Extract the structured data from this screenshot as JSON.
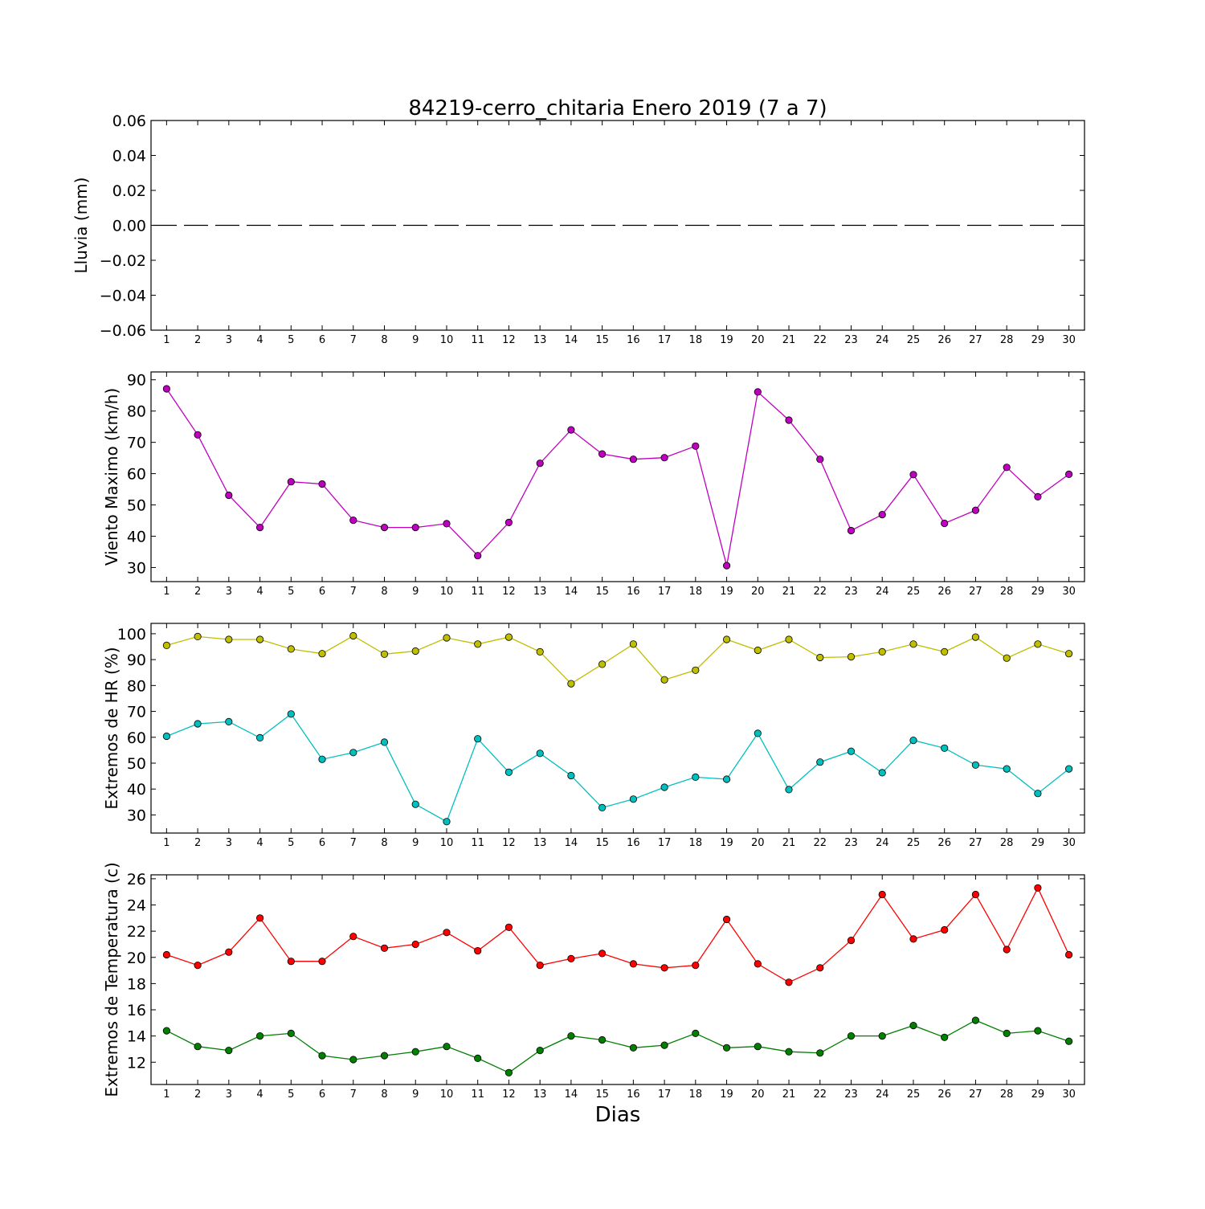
{
  "title": "84219-cerro_chitaria Enero 2019  (7 a 7)",
  "chart_data": [
    {
      "type": "line",
      "title": "84219-cerro_chitaria Enero 2019  (7 a 7)",
      "ylabel": "Lluvia (mm)",
      "xlabel": "",
      "ylim": [
        -0.06,
        0.06
      ],
      "yticks": [
        "0.06",
        "0.04",
        "0.02",
        "0.00",
        "−0.02",
        "−0.04",
        "−0.06"
      ],
      "ytick_values": [
        0.06,
        0.04,
        0.02,
        0.0,
        -0.02,
        -0.04,
        -0.06
      ],
      "categories": [
        "1",
        "2",
        "3",
        "4",
        "5",
        "6",
        "7",
        "8",
        "9",
        "10",
        "11",
        "12",
        "13",
        "14",
        "15",
        "16",
        "17",
        "18",
        "19",
        "20",
        "21",
        "22",
        "23",
        "24",
        "25",
        "26",
        "27",
        "28",
        "29",
        "30"
      ],
      "series": [
        {
          "color": "#000000",
          "style": "dashed",
          "markers": false,
          "values": [
            0,
            0,
            0,
            0,
            0,
            0,
            0,
            0,
            0,
            0,
            0,
            0,
            0,
            0,
            0,
            0,
            0,
            0,
            0,
            0,
            0,
            0,
            0,
            0,
            0,
            0,
            0,
            0,
            0,
            0
          ]
        }
      ]
    },
    {
      "type": "line",
      "title": "",
      "ylabel": "Viento Maximo (km/h)",
      "xlabel": "",
      "ylim": [
        25.5,
        92.5
      ],
      "yticks": [
        "90",
        "80",
        "70",
        "60",
        "50",
        "40",
        "30"
      ],
      "ytick_values": [
        90,
        80,
        70,
        60,
        50,
        40,
        30
      ],
      "categories": [
        "1",
        "2",
        "3",
        "4",
        "5",
        "6",
        "7",
        "8",
        "9",
        "10",
        "11",
        "12",
        "13",
        "14",
        "15",
        "16",
        "17",
        "18",
        "19",
        "20",
        "21",
        "22",
        "23",
        "24",
        "25",
        "26",
        "27",
        "28",
        "29",
        "30"
      ],
      "series": [
        {
          "color": "#bf00bf",
          "style": "solid",
          "markers": true,
          "values": [
            87.1,
            72.4,
            53.1,
            42.8,
            57.4,
            56.7,
            45.1,
            42.8,
            42.8,
            44.0,
            33.8,
            44.4,
            63.3,
            74.0,
            66.3,
            64.6,
            65.1,
            68.8,
            30.6,
            86.1,
            77.1,
            64.6,
            41.8,
            46.9,
            59.7,
            44.1,
            48.3,
            62.0,
            52.6,
            59.8
          ]
        }
      ]
    },
    {
      "type": "line",
      "title": "",
      "ylabel": "Extremos de HR (%)",
      "xlabel": "",
      "ylim": [
        23,
        104
      ],
      "yticks": [
        "100",
        "90",
        "80",
        "70",
        "60",
        "50",
        "40",
        "30"
      ],
      "ytick_values": [
        100,
        90,
        80,
        70,
        60,
        50,
        40,
        30
      ],
      "categories": [
        "1",
        "2",
        "3",
        "4",
        "5",
        "6",
        "7",
        "8",
        "9",
        "10",
        "11",
        "12",
        "13",
        "14",
        "15",
        "16",
        "17",
        "18",
        "19",
        "20",
        "21",
        "22",
        "23",
        "24",
        "25",
        "26",
        "27",
        "28",
        "29",
        "30"
      ],
      "series": [
        {
          "color": "#bfbf00",
          "style": "solid",
          "markers": true,
          "values": [
            95.5,
            98.9,
            97.8,
            97.8,
            94.1,
            92.3,
            99.2,
            92.1,
            93.3,
            98.4,
            96.0,
            98.7,
            93.0,
            80.7,
            88.2,
            96.0,
            82.2,
            85.9,
            97.8,
            93.6,
            97.8,
            90.8,
            91.1,
            93.0,
            96.0,
            93.0,
            98.7,
            90.6,
            96.0,
            92.3
          ]
        },
        {
          "color": "#00bfbf",
          "style": "solid",
          "markers": true,
          "values": [
            60.4,
            65.2,
            66.0,
            59.8,
            69.0,
            51.5,
            54.1,
            58.1,
            34.1,
            27.4,
            59.4,
            46.5,
            53.8,
            45.2,
            32.8,
            36.1,
            40.7,
            44.6,
            43.8,
            61.5,
            39.8,
            50.4,
            54.6,
            46.3,
            58.8,
            55.8,
            49.3,
            47.8,
            38.3,
            47.8
          ]
        }
      ]
    },
    {
      "type": "line",
      "title": "",
      "ylabel": "Extremos de Temperatura (c)",
      "xlabel": "Dias",
      "ylim": [
        10.3,
        26.3
      ],
      "yticks": [
        "26",
        "24",
        "22",
        "20",
        "18",
        "16",
        "14",
        "12"
      ],
      "ytick_values": [
        26,
        24,
        22,
        20,
        18,
        16,
        14,
        12
      ],
      "categories": [
        "1",
        "2",
        "3",
        "4",
        "5",
        "6",
        "7",
        "8",
        "9",
        "10",
        "11",
        "12",
        "13",
        "14",
        "15",
        "16",
        "17",
        "18",
        "19",
        "20",
        "21",
        "22",
        "23",
        "24",
        "25",
        "26",
        "27",
        "28",
        "29",
        "30"
      ],
      "series": [
        {
          "color": "#ff0000",
          "style": "solid",
          "markers": true,
          "values": [
            20.2,
            19.4,
            20.4,
            23.0,
            19.7,
            19.7,
            21.6,
            20.7,
            21.0,
            21.9,
            20.5,
            22.3,
            19.4,
            19.9,
            20.3,
            19.5,
            19.2,
            19.4,
            22.9,
            19.5,
            18.1,
            19.2,
            21.3,
            24.8,
            21.4,
            22.1,
            24.8,
            20.6,
            25.3,
            20.2
          ]
        },
        {
          "color": "#007f00",
          "style": "solid",
          "markers": true,
          "values": [
            14.4,
            13.2,
            12.9,
            14.0,
            14.2,
            12.5,
            12.2,
            12.5,
            12.8,
            13.2,
            12.3,
            11.2,
            12.9,
            14.0,
            13.7,
            13.1,
            13.3,
            14.2,
            13.1,
            13.2,
            12.8,
            12.7,
            14.0,
            14.0,
            14.8,
            13.9,
            15.2,
            14.2,
            14.4,
            13.6
          ]
        }
      ]
    }
  ]
}
